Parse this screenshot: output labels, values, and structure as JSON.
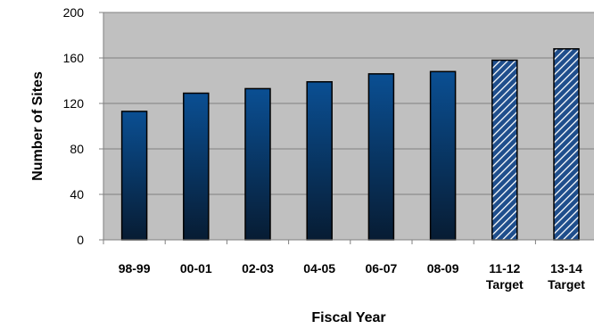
{
  "chart_data": {
    "type": "bar",
    "title": "",
    "xlabel": "Fiscal Year",
    "ylabel": "Number of Sites",
    "ylim": [
      0,
      200
    ],
    "yticks": [
      0,
      40,
      80,
      120,
      160,
      200
    ],
    "grid": true,
    "categories": [
      {
        "label": "98-99",
        "sublabel": "",
        "value": 113,
        "style": "solid"
      },
      {
        "label": "00-01",
        "sublabel": "",
        "value": 129,
        "style": "solid"
      },
      {
        "label": "02-03",
        "sublabel": "",
        "value": 133,
        "style": "solid"
      },
      {
        "label": "04-05",
        "sublabel": "",
        "value": 139,
        "style": "solid"
      },
      {
        "label": "06-07",
        "sublabel": "",
        "value": 146,
        "style": "solid"
      },
      {
        "label": "08-09",
        "sublabel": "",
        "value": 148,
        "style": "solid"
      },
      {
        "label": "11-12",
        "sublabel": "Target",
        "value": 158,
        "style": "hatched"
      },
      {
        "label": "13-14",
        "sublabel": "Target",
        "value": 168,
        "style": "hatched"
      }
    ],
    "colors": {
      "plot_background": "#c0c0c0",
      "bar_top": "#0a4f93",
      "bar_bottom": "#071c33",
      "hatch_background": "#1f4e8c",
      "hatch_line": "#ffffff",
      "gridline": "#7f7f7f",
      "axis": "#808080"
    }
  }
}
